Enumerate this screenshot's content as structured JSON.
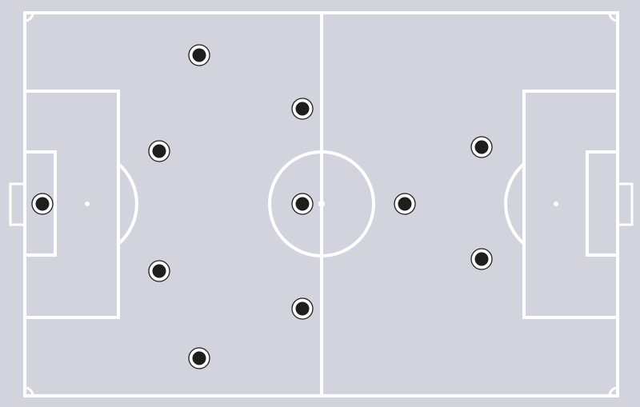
{
  "pitch": {
    "background_color": "#d3d3dd",
    "line_color": "#ffffff",
    "player_color": "#1e1e1e"
  },
  "players": [
    {
      "role": "goalkeeper",
      "icon": "player-marker-icon"
    },
    {
      "role": "defender-top",
      "icon": "player-marker-icon"
    },
    {
      "role": "defender-upper",
      "icon": "player-marker-icon"
    },
    {
      "role": "defender-lower",
      "icon": "player-marker-icon"
    },
    {
      "role": "defender-bottom",
      "icon": "player-marker-icon"
    },
    {
      "role": "midfielder-top",
      "icon": "player-marker-icon"
    },
    {
      "role": "midfielder-center",
      "icon": "player-marker-icon"
    },
    {
      "role": "midfielder-bottom",
      "icon": "player-marker-icon"
    },
    {
      "role": "forward-center",
      "icon": "player-marker-icon"
    },
    {
      "role": "forward-top",
      "icon": "player-marker-icon"
    },
    {
      "role": "forward-bottom",
      "icon": "player-marker-icon"
    }
  ]
}
